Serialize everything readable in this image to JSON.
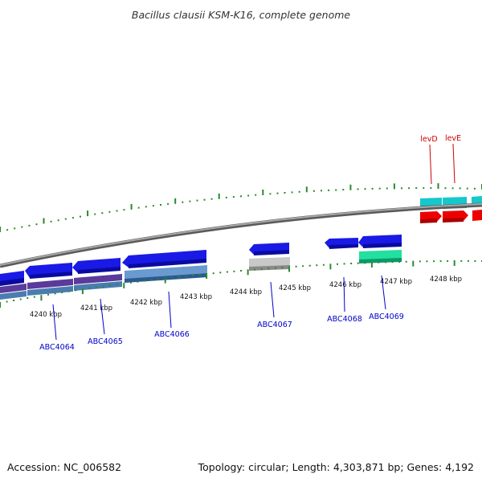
{
  "title": "Bacillus clausii KSM-K16, complete genome",
  "accession": "Accession: NC_006582",
  "summary": "Topology: circular; Length: 4,303,871 bp; Genes: 4,192",
  "ticks": [
    "4240 kbp",
    "4241 kbp",
    "4242 kbp",
    "4243 kbp",
    "4244 kbp",
    "4245 kbp",
    "4246 kbp",
    "4247 kbp",
    "4248 kbp"
  ],
  "gene_labels": {
    "ABC4064": "ABC4064",
    "ABC4065": "ABC4065",
    "ABC4066": "ABC4066",
    "ABC4067": "ABC4067",
    "ABC4068": "ABC4068",
    "ABC4069": "ABC4069",
    "levD": "levD",
    "levE": "levE"
  },
  "colors": {
    "forward_cds": "#1a1ae6",
    "cds_teal": "#14c8cc",
    "cds_red": "#ee0000",
    "cds_grey": "#b8b8b8",
    "cds_green": "#22e0a0",
    "cds_steel": "#4a7cb0",
    "cds_purple": "#5a3a9a",
    "backbone": "#8a8a8a",
    "tick_green": "#2a8a2a",
    "label_blue": "#0000cc",
    "label_red": "#cc0000"
  }
}
